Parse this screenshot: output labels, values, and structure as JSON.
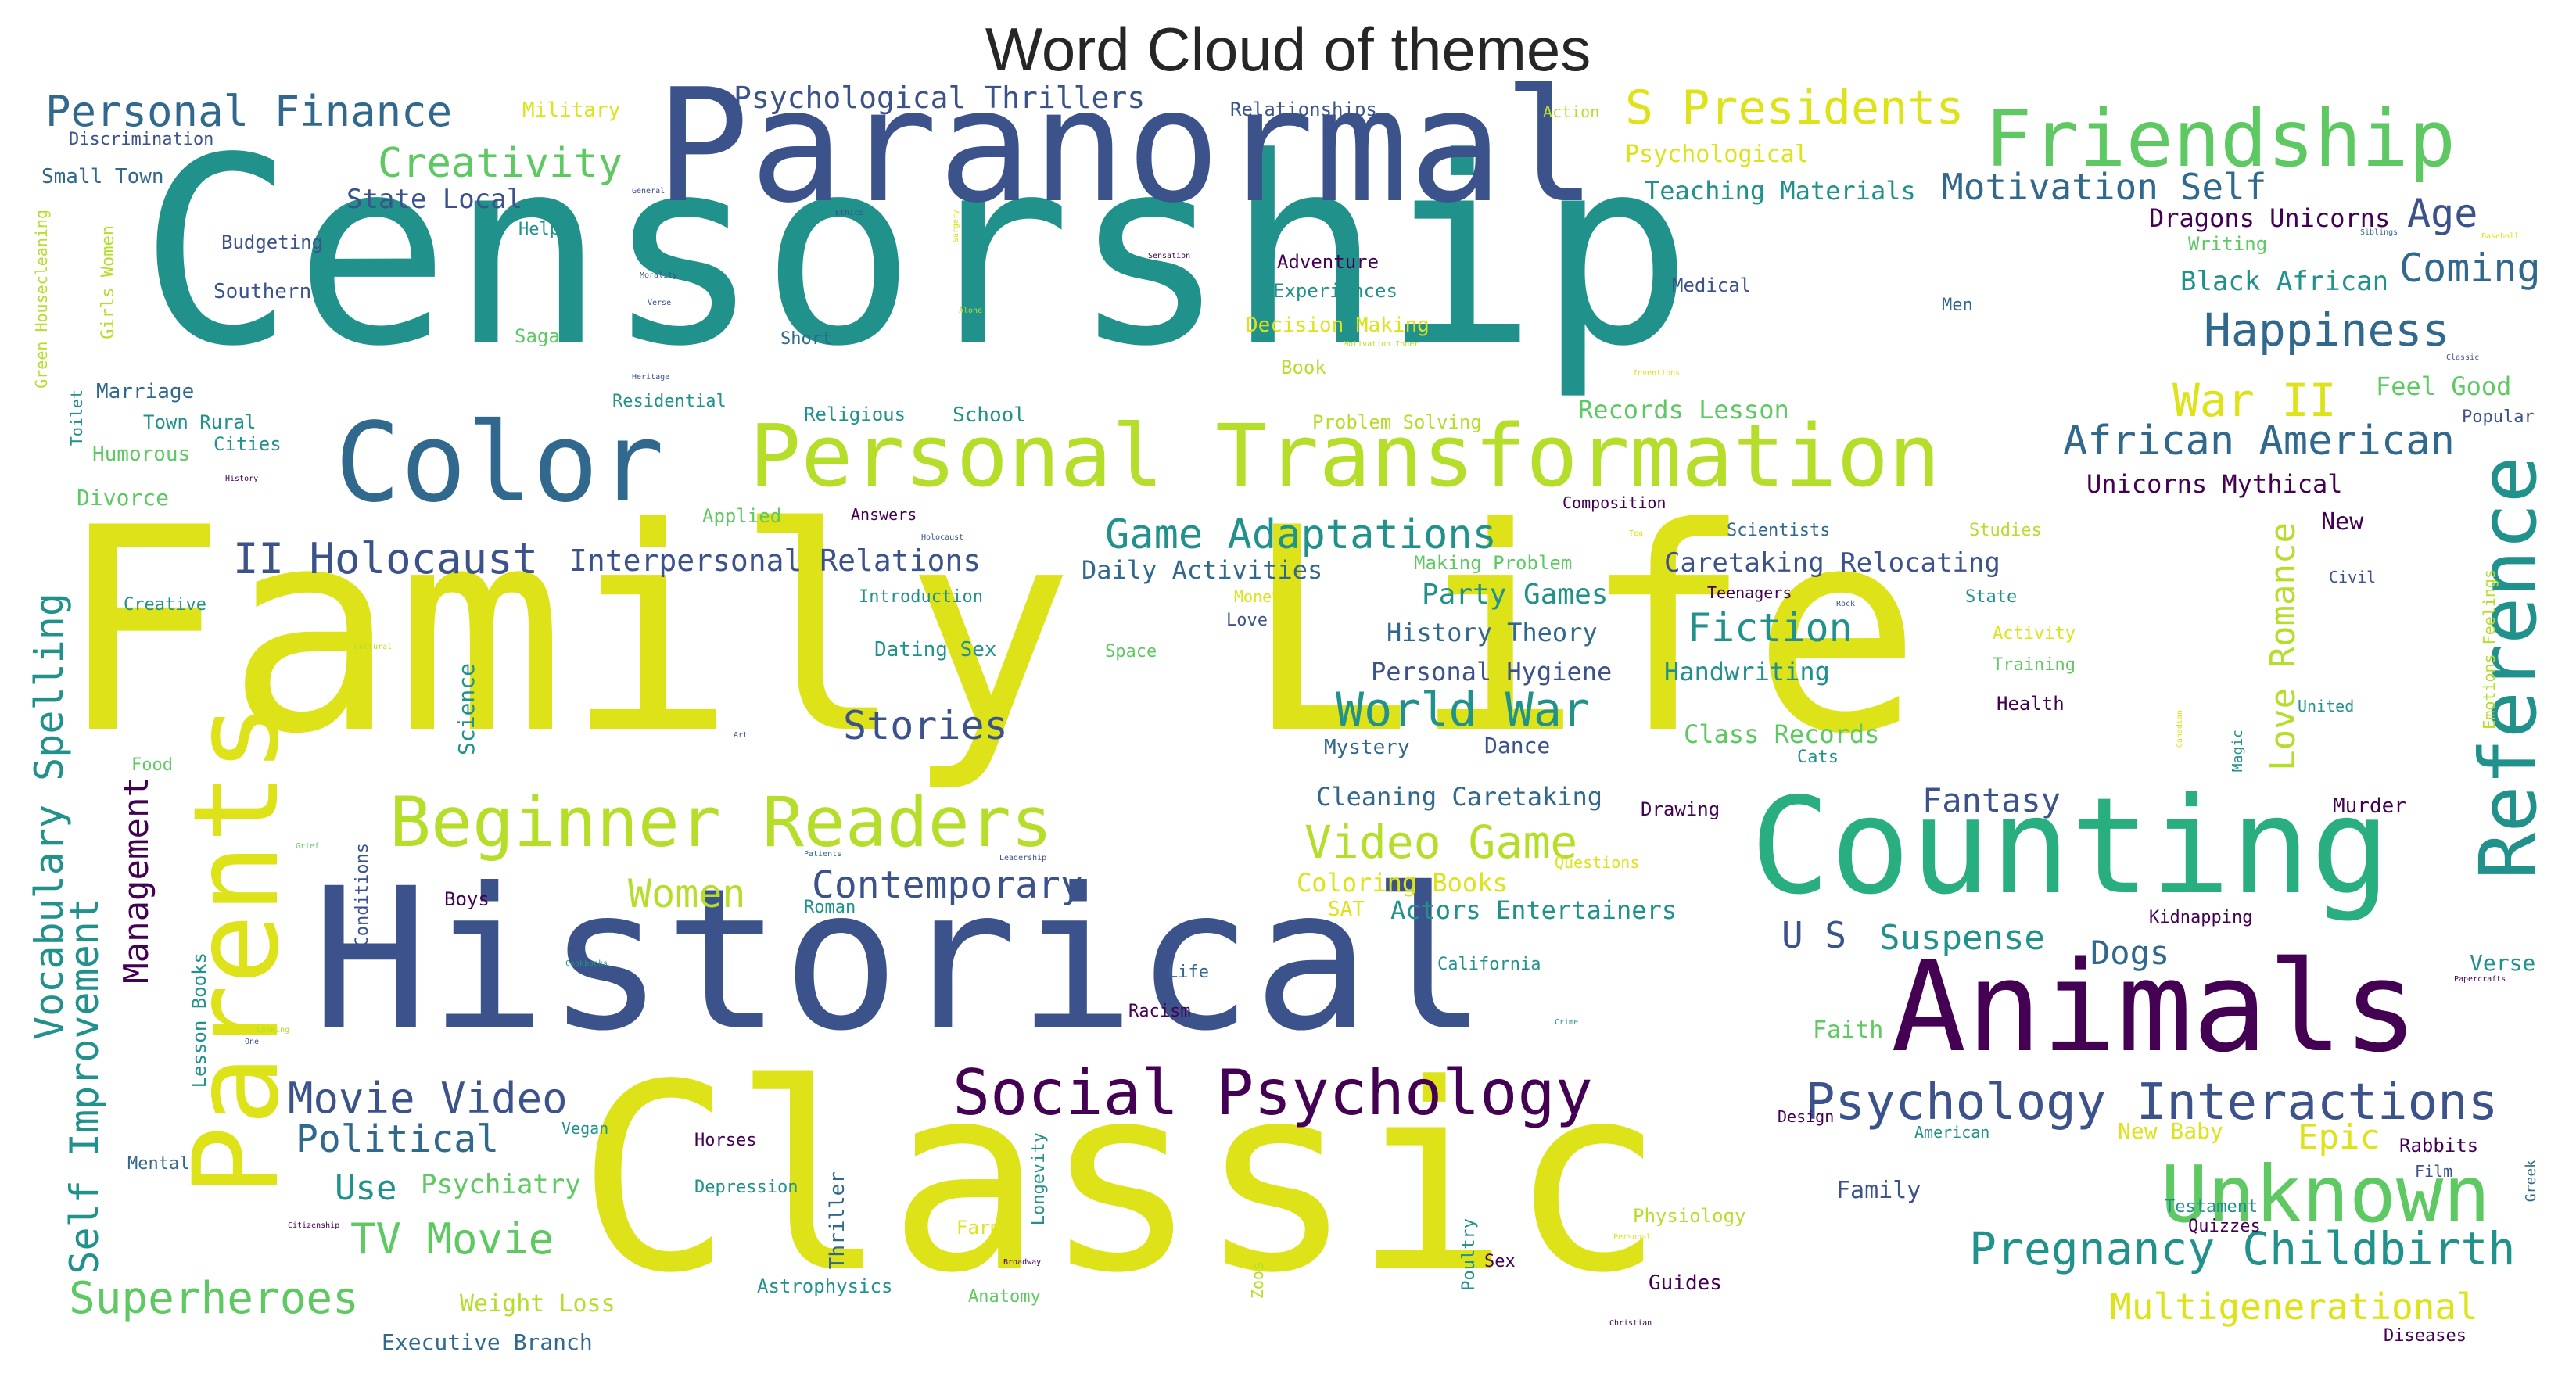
{
  "title": "Word Cloud of themes",
  "words": {
    "censorship": "Censorship",
    "family_life": "Family Life",
    "classic": "Classic",
    "historical": "Historical",
    "paranormal": "Paranormal",
    "counting": "Counting",
    "animals": "Animals",
    "parents": "Parents",
    "color": "Color",
    "personal_transformation": "Personal Transformation",
    "friendship": "Friendship",
    "reference": "Reference",
    "unknown": "Unknown",
    "beginner_readers": "Beginner Readers",
    "social_psychology": "Social Psychology",
    "psychology_interactions": "Psychology Interactions",
    "pregnancy_childbirth": "Pregnancy Childbirth",
    "s_presidents": "S Presidents",
    "personal_finance": "Personal Finance",
    "psychological_thrillers": "Psychological Thrillers",
    "creativity": "Creativity",
    "motivation_self": "Motivation Self",
    "game_adaptations": "Game Adaptations",
    "ii_holocaust": "II Holocaust",
    "world_war": "World War",
    "video_game": "Video Game",
    "happiness": "Happiness",
    "african_american": "African American",
    "war_ii": "War II",
    "coming": "Coming",
    "age": "Age",
    "fiction": "Fiction",
    "stories": "Stories",
    "contemporary": "Contemporary",
    "movie_video": "Movie Video",
    "tv_movie": "TV Movie",
    "superheroes": "Superheroes",
    "political": "Political",
    "use": "Use",
    "women": "Women",
    "u_s": "U S",
    "suspense": "Suspense",
    "dogs": "Dogs",
    "fantasy": "Fantasy",
    "multigenerational": "Multigenerational",
    "epic": "Epic",
    "love_romance": "Love Romance",
    "vocabulary_spelling": "Vocabulary Spelling",
    "self_improvement": "Self Improvement",
    "management": "Management",
    "interpersonal_relations": "Interpersonal Relations",
    "caretaking_relocating": "Caretaking Relocating",
    "party_games": "Party Games",
    "state_local": "State Local",
    "teaching_materials": "Teaching Materials",
    "dragons_unicorns": "Dragons Unicorns",
    "black_african": "Black African",
    "feel_good": "Feel Good",
    "unicorns_mythical": "Unicorns Mythical",
    "records_lesson": "Records Lesson",
    "class_records": "Class Records",
    "cleaning_caretaking": "Cleaning Caretaking",
    "actors_entertainers": "Actors Entertainers",
    "history_theory": "History Theory",
    "personal_hygiene": "Personal Hygiene",
    "daily_activities": "Daily Activities",
    "handwriting": "Handwriting",
    "coloring_books": "Coloring Books",
    "psychiatry": "Psychiatry",
    "weight_loss": "Weight Loss",
    "executive_branch": "Executive Branch",
    "military": "Military",
    "relationships": "Relationships",
    "psychological": "Psychological",
    "discrimination": "Discrimination",
    "small_town": "Small Town",
    "budgeting": "Budgeting",
    "southern": "Southern",
    "marriage": "Marriage",
    "town_rural": "Town Rural",
    "cities": "Cities",
    "humorous": "Humorous",
    "divorce": "Divorce",
    "creative": "Creative",
    "help": "Help",
    "general": "General",
    "adventure": "Adventure",
    "experiences": "Experiences",
    "decision_making": "Decision Making",
    "book": "Book",
    "saga": "Saga",
    "short": "Short",
    "residential": "Residential",
    "religious": "Religious",
    "school": "School",
    "problem_solving": "Problem Solving",
    "applied": "Applied",
    "answers": "Answers",
    "composition": "Composition",
    "scientists": "Scientists",
    "studies": "Studies",
    "making_problem": "Making Problem",
    "introduction": "Introduction",
    "money": "Money",
    "love": "Love",
    "teenagers": "Teenagers",
    "state": "State",
    "civil": "Civil",
    "new": "New",
    "dating_sex": "Dating Sex",
    "space": "Space",
    "activity": "Activity",
    "training": "Training",
    "health": "Health",
    "united": "United",
    "mystery": "Mystery",
    "dance": "Dance",
    "cats": "Cats",
    "magic": "Magic",
    "murder": "Murder",
    "drawing": "Drawing",
    "questions": "Questions",
    "kidnapping": "Kidnapping",
    "verse": "Verse",
    "sat": "SAT",
    "boys": "Boys",
    "roman": "Roman",
    "california": "California",
    "faith": "Faith",
    "life": "Life",
    "racism": "Racism",
    "new_baby": "New Baby",
    "rabbits": "Rabbits",
    "film": "Film",
    "greek": "Greek",
    "american": "American",
    "design": "Design",
    "family": "Family",
    "testament": "Testament",
    "quizzes": "Quizzes",
    "physiology": "Physiology",
    "guides": "Guides",
    "sex": "Sex",
    "poultry": "Poultry",
    "astrophysics": "Astrophysics",
    "anatomy": "Anatomy",
    "diseases": "Diseases",
    "horses": "Horses",
    "depression": "Depression",
    "thriller": "Thriller",
    "longevity": "Longevity",
    "farm": "Farm",
    "vegan": "Vegan",
    "mental": "Mental",
    "lesson_books": "Lesson Books",
    "conditions": "Conditions",
    "science": "Science",
    "food": "Food",
    "medical": "Medical",
    "men": "Men",
    "writing": "Writing",
    "siblings": "Siblings",
    "popular": "Popular",
    "emotions_feelings": "Emotions Feelings",
    "girls_women": "Girls Women",
    "green_housecleaning": "Green Housecleaning",
    "toilet": "Toilet",
    "action": "Action",
    "history": "History",
    "cultural": "Cultural",
    "art": "Art",
    "grief": "Grief",
    "patients": "Patients",
    "leadership": "Leadership",
    "cookbooks": "Cookbooks",
    "cooking": "Cooking",
    "christian": "Christian",
    "broadway": "Broadway",
    "personal": "Personal",
    "citizenship": "Citizenship",
    "crime": "Crime",
    "papercrafts": "Papercrafts",
    "canadian": "Canadian",
    "rock": "Rock",
    "holocaust": "Holocaust",
    "ethics": "Ethics",
    "sensation": "Sensation",
    "surgery": "Surgery",
    "inventions": "Inventions",
    "classic_small": "Classic",
    "morality": "Morality",
    "verse_small": "Verse",
    "heritage": "Heritage",
    "motivation_inner": "Motivation Inner",
    "alone": "Alone",
    "baseball": "Baseball",
    "zoos": "Zoos",
    "one": "One",
    "tea": "Tea"
  }
}
